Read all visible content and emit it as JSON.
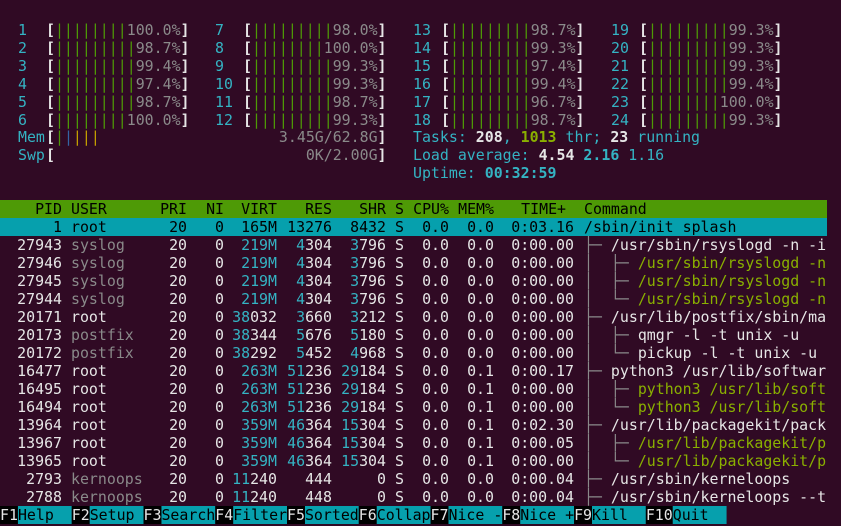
{
  "meter_brackets": [
    "[",
    "]"
  ],
  "cpu_meters": [
    {
      "label": "1",
      "bar": "||||||||",
      "value": "100.0%"
    },
    {
      "label": "2",
      "bar": "|||||||||",
      "value": "98.7%"
    },
    {
      "label": "3",
      "bar": "|||||||||",
      "value": "99.4%"
    },
    {
      "label": "4",
      "bar": "|||||||||",
      "value": "97.4%"
    },
    {
      "label": "5",
      "bar": "|||||||||",
      "value": "98.7%"
    },
    {
      "label": "6",
      "bar": "||||||||",
      "value": "100.0%"
    },
    {
      "label": "7",
      "bar": "|||||||||",
      "value": "98.0%"
    },
    {
      "label": "8",
      "bar": "||||||||",
      "value": "100.0%"
    },
    {
      "label": "9",
      "bar": "|||||||||",
      "value": "99.3%"
    },
    {
      "label": "10",
      "bar": "|||||||||",
      "value": "99.3%"
    },
    {
      "label": "11",
      "bar": "|||||||||",
      "value": "98.7%"
    },
    {
      "label": "12",
      "bar": "|||||||||",
      "value": "99.3%"
    },
    {
      "label": "13",
      "bar": "|||||||||",
      "value": "98.7%"
    },
    {
      "label": "14",
      "bar": "|||||||||",
      "value": "99.3%"
    },
    {
      "label": "15",
      "bar": "|||||||||",
      "value": "97.4%"
    },
    {
      "label": "16",
      "bar": "|||||||||",
      "value": "99.4%"
    },
    {
      "label": "17",
      "bar": "|||||||||",
      "value": "96.7%"
    },
    {
      "label": "18",
      "bar": "|||||||||",
      "value": "98.7%"
    },
    {
      "label": "19",
      "bar": "|||||||||",
      "value": "99.3%"
    },
    {
      "label": "20",
      "bar": "|||||||||",
      "value": "99.3%"
    },
    {
      "label": "21",
      "bar": "|||||||||",
      "value": "99.3%"
    },
    {
      "label": "22",
      "bar": "|||||||||",
      "value": "99.4%"
    },
    {
      "label": "23",
      "bar": "||||||||",
      "value": "100.0%"
    },
    {
      "label": "24",
      "bar": "|||||||||",
      "value": "99.3%"
    }
  ],
  "memory": {
    "label": "Mem",
    "bar": "|||||",
    "value": "3.45G/62.8G"
  },
  "swap": {
    "label": "Swp",
    "value": "0K/2.00G"
  },
  "tasks": {
    "label": "Tasks:",
    "total": "208",
    "separator": ",",
    "threads": "1013",
    "threads_label": "thr;",
    "running": "23",
    "running_label": "running"
  },
  "load_average": {
    "label": "Load average:",
    "values": [
      "4.54",
      "2.16",
      "1.16"
    ]
  },
  "uptime": {
    "label": "Uptime:",
    "value": "00:32:59"
  },
  "columns": [
    "PID",
    "USER",
    "PRI",
    "NI",
    "VIRT",
    "RES",
    "SHR",
    "S",
    "CPU%",
    "MEM%",
    "TIME+",
    "Command"
  ],
  "processes": [
    {
      "cells": [
        "1",
        "root",
        "20",
        "0",
        "165M",
        "13276",
        "8432",
        "S",
        "0.0",
        "0.0",
        "0:03.16"
      ],
      "command": "/sbin/init splash",
      "selected": true
    },
    {
      "cells": [
        "27943",
        "syslog",
        "20",
        "0",
        "219M",
        "4304",
        "3796",
        "S",
        "0.0",
        "0.0",
        "0:00.00"
      ],
      "tree": "├─ ",
      "command": "/usr/sbin/rsyslogd -n -i"
    },
    {
      "cells": [
        "27946",
        "syslog",
        "20",
        "0",
        "219M",
        "4304",
        "3796",
        "S",
        "0.0",
        "0.0",
        "0:00.00"
      ],
      "tree": "│  ├─ ",
      "command": "/usr/sbin/rsyslogd -n",
      "thread": true
    },
    {
      "cells": [
        "27945",
        "syslog",
        "20",
        "0",
        "219M",
        "4304",
        "3796",
        "S",
        "0.0",
        "0.0",
        "0:00.00"
      ],
      "tree": "│  ├─ ",
      "command": "/usr/sbin/rsyslogd -n",
      "thread": true
    },
    {
      "cells": [
        "27944",
        "syslog",
        "20",
        "0",
        "219M",
        "4304",
        "3796",
        "S",
        "0.0",
        "0.0",
        "0:00.00"
      ],
      "tree": "│  └─ ",
      "command": "/usr/sbin/rsyslogd -n",
      "thread": true
    },
    {
      "cells": [
        "20171",
        "root",
        "20",
        "0",
        "38032",
        "3660",
        "3212",
        "S",
        "0.0",
        "0.0",
        "0:00.00"
      ],
      "tree": "├─ ",
      "command": "/usr/lib/postfix/sbin/ma"
    },
    {
      "cells": [
        "20173",
        "postfix",
        "20",
        "0",
        "38344",
        "5676",
        "5180",
        "S",
        "0.0",
        "0.0",
        "0:00.00"
      ],
      "tree": "│  ├─ ",
      "command": "qmgr -l -t unix -u"
    },
    {
      "cells": [
        "20172",
        "postfix",
        "20",
        "0",
        "38292",
        "5452",
        "4968",
        "S",
        "0.0",
        "0.0",
        "0:00.00"
      ],
      "tree": "│  └─ ",
      "command": "pickup -l -t unix -u"
    },
    {
      "cells": [
        "16477",
        "root",
        "20",
        "0",
        "263M",
        "51236",
        "29184",
        "S",
        "0.0",
        "0.1",
        "0:00.17"
      ],
      "tree": "├─ ",
      "command": "python3 /usr/lib/softwar"
    },
    {
      "cells": [
        "16495",
        "root",
        "20",
        "0",
        "263M",
        "51236",
        "29184",
        "S",
        "0.0",
        "0.1",
        "0:00.00"
      ],
      "tree": "│  ├─ ",
      "command": "python3 /usr/lib/soft",
      "thread": true
    },
    {
      "cells": [
        "16494",
        "root",
        "20",
        "0",
        "263M",
        "51236",
        "29184",
        "S",
        "0.0",
        "0.1",
        "0:00.00"
      ],
      "tree": "│  └─ ",
      "command": "python3 /usr/lib/soft",
      "thread": true
    },
    {
      "cells": [
        "13964",
        "root",
        "20",
        "0",
        "359M",
        "46364",
        "15304",
        "S",
        "0.0",
        "0.1",
        "0:02.30"
      ],
      "tree": "├─ ",
      "command": "/usr/lib/packagekit/pack"
    },
    {
      "cells": [
        "13967",
        "root",
        "20",
        "0",
        "359M",
        "46364",
        "15304",
        "S",
        "0.0",
        "0.1",
        "0:00.05"
      ],
      "tree": "│  ├─ ",
      "command": "/usr/lib/packagekit/p",
      "thread": true
    },
    {
      "cells": [
        "13965",
        "root",
        "20",
        "0",
        "359M",
        "46364",
        "15304",
        "S",
        "0.0",
        "0.1",
        "0:00.00"
      ],
      "tree": "│  └─ ",
      "command": "/usr/lib/packagekit/p",
      "thread": true
    },
    {
      "cells": [
        "2793",
        "kernoops",
        "20",
        "0",
        "11240",
        "444",
        "0",
        "S",
        "0.0",
        "0.0",
        "0:00.04"
      ],
      "tree": "├─ ",
      "command": "/usr/sbin/kerneloops"
    },
    {
      "cells": [
        "2788",
        "kernoops",
        "20",
        "0",
        "11240",
        "448",
        "0",
        "S",
        "0.0",
        "0.0",
        "0:00.04"
      ],
      "tree": "├─ ",
      "command": "/usr/sbin/kerneloops --t"
    }
  ],
  "function_keys": [
    {
      "key": "F1",
      "label": "Help"
    },
    {
      "key": "F2",
      "label": "Setup"
    },
    {
      "key": "F3",
      "label": "Search"
    },
    {
      "key": "F4",
      "label": "Filter"
    },
    {
      "key": "F5",
      "label": "Sorted"
    },
    {
      "key": "F6",
      "label": "Collap"
    },
    {
      "key": "F7",
      "label": "Nice -"
    },
    {
      "key": "F8",
      "label": "Nice +"
    },
    {
      "key": "F9",
      "label": "Kill"
    },
    {
      "key": "F10",
      "label": "Quit"
    }
  ]
}
